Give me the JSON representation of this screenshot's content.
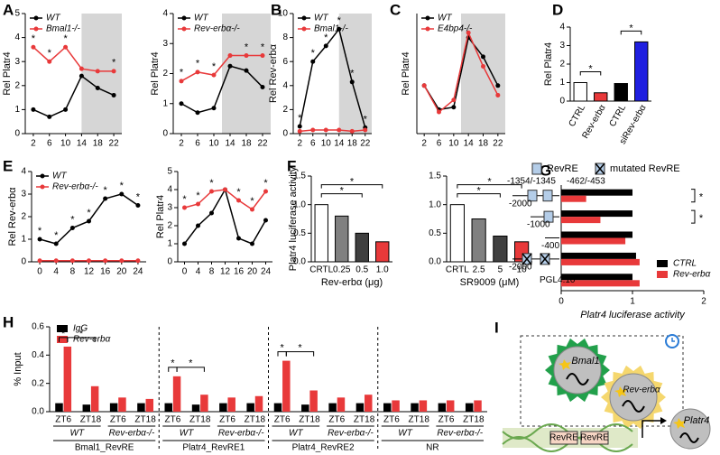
{
  "chart_data": [
    {
      "type": "line",
      "panel": "A",
      "ylabel": "Rel Platr4",
      "x": [
        2,
        6,
        10,
        14,
        18,
        22
      ],
      "xlim": [
        0,
        24
      ],
      "ylim": [
        0,
        5
      ],
      "yticks": [
        0,
        1,
        2,
        3,
        4,
        5
      ],
      "shaded_x": [
        14,
        24
      ],
      "legend": "upper left",
      "series": [
        {
          "name": "WT",
          "color": "#000000",
          "values": [
            1.0,
            0.7,
            1.0,
            2.4,
            1.9,
            1.6
          ]
        },
        {
          "name": "Bmal1-/-",
          "color": "#e8393a",
          "values": [
            3.6,
            3.0,
            3.6,
            2.7,
            2.6,
            2.6
          ]
        }
      ],
      "annotations": [
        {
          "x": 2,
          "text": "*"
        },
        {
          "x": 6,
          "text": "*"
        },
        {
          "x": 10,
          "text": "*"
        },
        {
          "x": 22,
          "text": "*"
        }
      ]
    },
    {
      "type": "line",
      "ylabel": "Rel Platr4",
      "x": [
        2,
        6,
        10,
        14,
        18,
        22
      ],
      "xlim": [
        0,
        24
      ],
      "ylim": [
        0,
        4
      ],
      "yticks": [
        0,
        1,
        2,
        3,
        4
      ],
      "shaded_x": [
        12,
        24
      ],
      "legend": "upper left",
      "series": [
        {
          "name": "WT",
          "color": "#000000",
          "values": [
            1.0,
            0.7,
            0.85,
            2.25,
            2.1,
            1.55
          ]
        },
        {
          "name": "Rev-erbα-/-",
          "color": "#e8393a",
          "values": [
            1.75,
            2.05,
            1.95,
            2.6,
            2.6,
            2.6
          ]
        }
      ],
      "annotations": [
        {
          "x": 2,
          "text": "*"
        },
        {
          "x": 6,
          "text": "*"
        },
        {
          "x": 10,
          "text": "*"
        },
        {
          "x": 18,
          "text": "*"
        },
        {
          "x": 22,
          "text": "*"
        }
      ]
    },
    {
      "type": "line",
      "panel": "B",
      "ylabel": "Rel Rev-erbα",
      "x": [
        2,
        6,
        10,
        14,
        18,
        22
      ],
      "xlim": [
        0,
        24
      ],
      "ylim": [
        0,
        10
      ],
      "yticks": [
        0,
        2,
        4,
        6,
        8,
        10
      ],
      "shaded_x": [
        14,
        24
      ],
      "legend": "upper left",
      "series": [
        {
          "name": "WT",
          "color": "#000000",
          "values": [
            0.6,
            6.0,
            7.3,
            8.7,
            4.3,
            0.5
          ]
        },
        {
          "name": "Bmal1-/-",
          "color": "#e8393a",
          "values": [
            0.2,
            0.3,
            0.3,
            0.3,
            0.2,
            0.3
          ]
        }
      ],
      "annotations": [
        {
          "x": 2,
          "text": "*"
        },
        {
          "x": 6,
          "text": "*"
        },
        {
          "x": 10,
          "text": "*"
        },
        {
          "x": 14,
          "text": "*"
        },
        {
          "x": 18,
          "text": "*"
        },
        {
          "x": 22,
          "text": "*"
        }
      ]
    },
    {
      "type": "line",
      "panel": "C",
      "ylabel": "Rel Platr4",
      "x": [
        2,
        6,
        10,
        14,
        18,
        22
      ],
      "xlim": [
        0,
        24
      ],
      "ylim": [
        0,
        2.5
      ],
      "shaded_x": [
        12,
        24
      ],
      "legend": "upper left",
      "series": [
        {
          "name": "WT",
          "color": "#000000",
          "values": [
            1.0,
            0.5,
            0.55,
            2.0,
            1.6,
            1.0
          ]
        },
        {
          "name": "E4bp4-/-",
          "color": "#e8393a",
          "values": [
            1.0,
            0.45,
            0.7,
            2.1,
            1.4,
            0.8
          ]
        }
      ]
    },
    {
      "type": "bar",
      "panel": "D",
      "ylabel": "Rel Platr4",
      "categories": [
        "CTRL",
        "Rev-erbα",
        "CTRL",
        "siRev-erbα"
      ],
      "values": [
        1.0,
        0.45,
        0.95,
        3.2
      ],
      "colors": [
        "#ffffff",
        "#e8393a",
        "#000000",
        "#1f1fe0"
      ],
      "ylim": [
        0,
        4
      ],
      "yticks": [
        0,
        1,
        2,
        3,
        4
      ],
      "annotations": [
        {
          "from": 0,
          "to": 1,
          "text": "*"
        },
        {
          "from": 2,
          "to": 3,
          "text": "*"
        }
      ]
    },
    {
      "type": "line",
      "panel": "E",
      "ylabel": "Rel Rev-erbα",
      "x": [
        0,
        4,
        8,
        12,
        16,
        20,
        24
      ],
      "xlim": [
        -2,
        26
      ],
      "ylim": [
        0,
        4
      ],
      "yticks": [
        0,
        1,
        2,
        3,
        4
      ],
      "legend": "upper left",
      "series": [
        {
          "name": "WT",
          "color": "#000000",
          "values": [
            1.0,
            0.8,
            1.5,
            1.8,
            2.8,
            3.0,
            2.5
          ]
        },
        {
          "name": "Rev-erbα-/-",
          "color": "#e8393a",
          "values": [
            0.05,
            0.05,
            0.05,
            0.05,
            0.05,
            0.05,
            0.05
          ]
        }
      ],
      "annotations": [
        {
          "x": 0,
          "text": "*"
        },
        {
          "x": 4,
          "text": "*"
        },
        {
          "x": 8,
          "text": "*"
        },
        {
          "x": 12,
          "text": "*"
        },
        {
          "x": 16,
          "text": "*"
        },
        {
          "x": 20,
          "text": "*"
        },
        {
          "x": 24,
          "text": "*"
        }
      ]
    },
    {
      "type": "line",
      "ylabel": "Rel Platr4",
      "x": [
        0,
        4,
        8,
        12,
        16,
        20,
        24
      ],
      "xlim": [
        -2,
        26
      ],
      "ylim": [
        0,
        5
      ],
      "yticks": [
        0,
        1,
        2,
        3,
        4,
        5
      ],
      "series": [
        {
          "name": "WT",
          "color": "#000000",
          "values": [
            1.0,
            2.0,
            2.7,
            4.0,
            1.3,
            1.0,
            2.3
          ]
        },
        {
          "name": "Rev-erbα-/-",
          "color": "#e8393a",
          "values": [
            3.0,
            3.2,
            3.9,
            4.0,
            3.4,
            2.9,
            3.9
          ]
        }
      ],
      "annotations": [
        {
          "x": 0,
          "text": "*"
        },
        {
          "x": 4,
          "text": "*"
        },
        {
          "x": 8,
          "text": "*"
        },
        {
          "x": 16,
          "text": "*"
        },
        {
          "x": 20,
          "text": "*"
        },
        {
          "x": 24,
          "text": "*"
        }
      ]
    },
    {
      "type": "bar",
      "panel": "F",
      "ylabel": "Platr4 luciferase activity",
      "xlabel": "Rev-erbα (μg)",
      "categories": [
        "CRTL",
        "0.25",
        "0.5",
        "1.0"
      ],
      "values": [
        1.0,
        0.8,
        0.5,
        0.35
      ],
      "colors": [
        "#ffffff",
        "#808080",
        "#404040",
        "#e8393a"
      ],
      "ylim": [
        0,
        1.5
      ],
      "yticks": [
        {
          "value": 0,
          "label": "0.0"
        },
        0.5,
        {
          "value": 1,
          "label": "1.0"
        },
        1.5
      ],
      "annotations": [
        {
          "from": 0,
          "to": 2,
          "text": "*"
        },
        {
          "from": 0,
          "to": 3,
          "text": "*"
        }
      ]
    },
    {
      "type": "bar",
      "xlabel": "SR9009 (μM)",
      "categories": [
        "CRTL",
        "2.5",
        "5",
        "10"
      ],
      "values": [
        1.0,
        0.75,
        0.45,
        0.35
      ],
      "colors": [
        "#ffffff",
        "#808080",
        "#404040",
        "#e8393a"
      ],
      "ylim": [
        0,
        1.5
      ],
      "yticks": [
        {
          "value": 0,
          "label": "0.0"
        },
        0.5,
        {
          "value": 1,
          "label": "1.0"
        },
        1.5
      ],
      "annotations": [
        {
          "from": 0,
          "to": 2,
          "text": "*"
        },
        {
          "from": 0,
          "to": 3,
          "text": "*"
        }
      ]
    },
    {
      "type": "barh",
      "panel": "G",
      "xlabel": "Platr4 luciferase activity",
      "categories": [
        "-2000",
        "-1000",
        "-400",
        "-2000",
        "PGL4.10"
      ],
      "xlim": [
        0,
        2
      ],
      "xticks": [
        0,
        1,
        2
      ],
      "legend": "lower right",
      "element_legend": [
        "RevRE",
        "mutated RevRE"
      ],
      "site_labels": [
        "-1354/-1345",
        "-462/-453"
      ],
      "series": [
        {
          "name": "CTRL",
          "color": "#000000",
          "values": [
            1.0,
            1.0,
            1.0,
            1.05,
            1.0
          ]
        },
        {
          "name": "Rev-erbα",
          "color": "#e8393a",
          "values": [
            0.35,
            0.55,
            0.9,
            1.1,
            1.1
          ]
        }
      ],
      "annotations": [
        {
          "row": 0,
          "text": "*"
        },
        {
          "row": 1,
          "text": "*"
        }
      ]
    },
    {
      "type": "grouped_bar",
      "panel": "H",
      "ylabel": "% Input",
      "ylim": [
        0,
        0.6
      ],
      "yticks": [
        {
          "value": 0,
          "label": "0.0"
        },
        0.2,
        0.4,
        0.6
      ],
      "legend": "upper left",
      "categories": [
        "ZT6",
        "ZT18",
        "ZT6",
        "ZT18",
        "ZT6",
        "ZT18",
        "ZT6",
        "ZT18",
        "ZT6",
        "ZT18",
        "ZT6",
        "ZT18",
        "ZT6",
        "ZT18",
        "ZT6",
        "ZT18"
      ],
      "genotype_labels": [
        "WT",
        "Rev-erbα-/-",
        "WT",
        "Rev-erbα-/-",
        "WT",
        "Rev-erbα-/-",
        "WT",
        "Rev-erbα-/-"
      ],
      "group_labels": [
        "Bmal1_RevRE",
        "Platr4_RevRE1",
        "Platr4_RevRE2",
        "NR"
      ],
      "series": [
        {
          "name": "IgG",
          "color": "#000000",
          "values": [
            0.06,
            0.05,
            0.06,
            0.06,
            0.06,
            0.05,
            0.06,
            0.06,
            0.06,
            0.05,
            0.06,
            0.06,
            0.06,
            0.06,
            0.06,
            0.06
          ]
        },
        {
          "name": "Rev-erbα",
          "color": "#e8393a",
          "values": [
            0.46,
            0.18,
            0.1,
            0.09,
            0.25,
            0.12,
            0.1,
            0.11,
            0.36,
            0.15,
            0.1,
            0.12,
            0.08,
            0.08,
            0.08,
            0.08
          ]
        }
      ],
      "annotations": [
        {
          "from": {
            "cat": 0,
            "series": 0
          },
          "to": {
            "cat": 0,
            "series": 1
          },
          "text": "*"
        },
        {
          "from": {
            "cat": 0,
            "series": 1
          },
          "to": {
            "cat": 1,
            "series": 1
          },
          "text": "*"
        },
        {
          "from": {
            "cat": 4,
            "series": 0
          },
          "to": {
            "cat": 4,
            "series": 1
          },
          "text": "*"
        },
        {
          "from": {
            "cat": 4,
            "series": 1
          },
          "to": {
            "cat": 5,
            "series": 1
          },
          "text": "*"
        },
        {
          "from": {
            "cat": 8,
            "series": 0
          },
          "to": {
            "cat": 8,
            "series": 1
          },
          "text": "*"
        },
        {
          "from": {
            "cat": 8,
            "series": 1
          },
          "to": {
            "cat": 9,
            "series": 1
          },
          "text": "*"
        }
      ]
    }
  ],
  "diagram": {
    "panel": "I",
    "labels": [
      "Bmal1",
      "Rev-erbα",
      "RevRE",
      "RevRE",
      "Platr4"
    ]
  }
}
